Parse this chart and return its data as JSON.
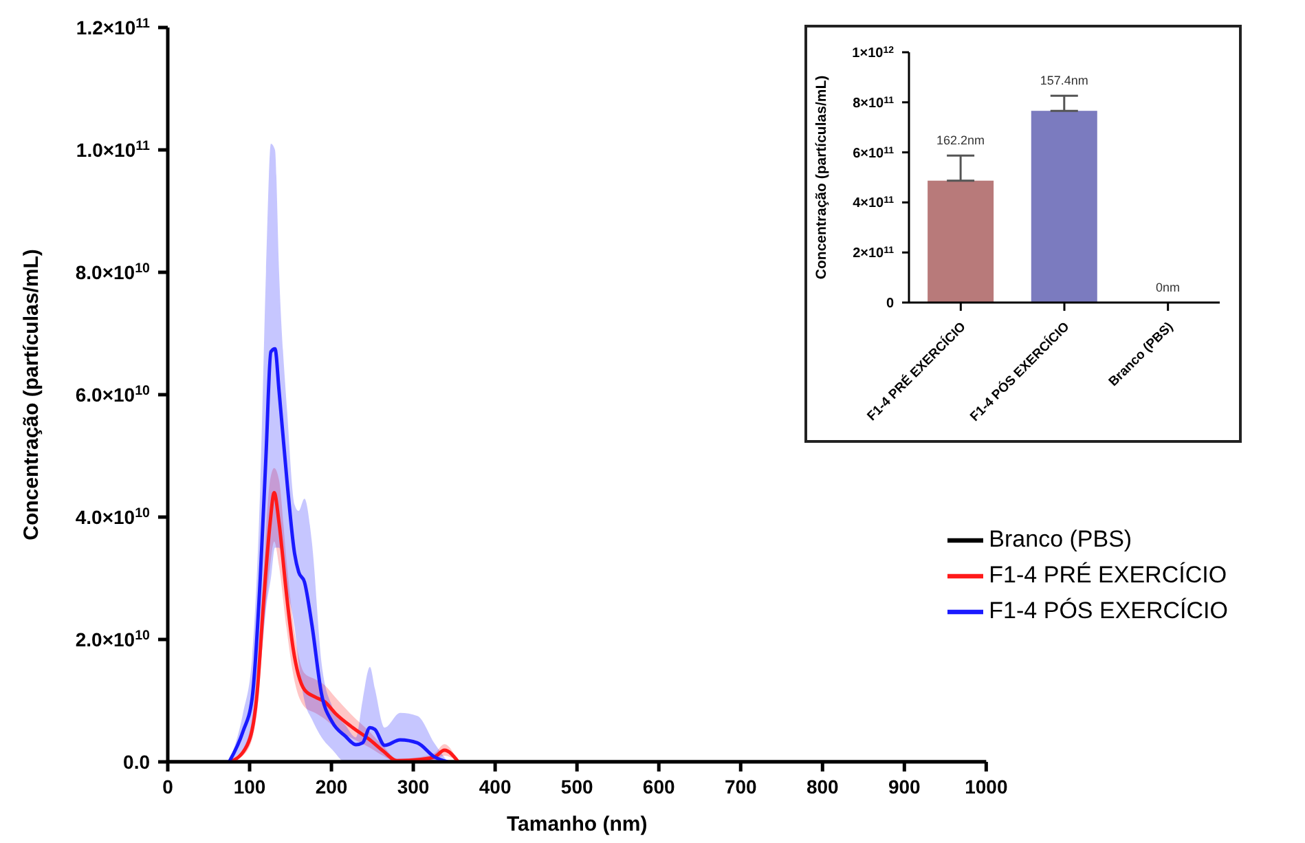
{
  "chart_data": [
    {
      "type": "line",
      "xlabel": "Tamanho (nm)",
      "ylabel": "Concentração (partículas/mL)",
      "xlim": [
        0,
        1000
      ],
      "xticks": [
        0,
        100,
        200,
        300,
        400,
        500,
        600,
        700,
        800,
        900,
        1000
      ],
      "ylim": [
        0,
        120000000000.0
      ],
      "yticks": [
        {
          "value": 0,
          "label": "0.0"
        },
        {
          "value": 20000000000.0,
          "label": "2.0×10$^{10}$"
        },
        {
          "value": 40000000000.0,
          "label": "4.0×10$^{10}$"
        },
        {
          "value": 60000000000.0,
          "label": "6.0×10$^{10}$"
        },
        {
          "value": 80000000000.0,
          "label": "8.0×10$^{10}$"
        },
        {
          "value": 100000000000.0,
          "label": "1.0×10$^{11}$"
        },
        {
          "value": 120000000000.0,
          "label": "1.2×10$^{11}$"
        }
      ],
      "legend": "right",
      "series": [
        {
          "name": "Branco (PBS)",
          "color": "#000000",
          "x": [
            0,
            1000
          ],
          "values": [
            0,
            0
          ]
        },
        {
          "name": "F1-4 PRÉ EXERCÍCIO",
          "color": "#ff1a1a",
          "x": [
            77,
            97,
            109,
            117,
            125,
            130,
            136,
            145,
            153,
            167,
            180,
            192,
            205,
            226,
            246,
            263,
            280,
            309,
            326,
            338,
            355
          ],
          "values": [
            0,
            2700000000.0,
            11000000000.0,
            26000000000.0,
            39000000000.0,
            44000000000.0,
            39000000000.0,
            27500000000.0,
            18700000000.0,
            11800000000.0,
            10600000000.0,
            9800000000.0,
            7900000000.0,
            5600000000.0,
            3700000000.0,
            1800000000.0,
            200000000.0,
            400000000.0,
            800000000.0,
            1900000000.0,
            0
          ],
          "lower": [
            0,
            1800000000.0,
            8000000000.0,
            21000000000.0,
            32000000000.0,
            36000000000.0,
            32000000000.0,
            22000000000.0,
            14500000000.0,
            9000000000.0,
            8000000000.0,
            7000000000.0,
            5500000000.0,
            3800000000.0,
            2400000000.0,
            1000000000.0,
            0,
            0,
            300000000.0,
            1000000000.0,
            0
          ],
          "upper": [
            0,
            3600000000.0,
            14000000000.0,
            31000000000.0,
            46000000000.0,
            48000000000.0,
            46000000000.0,
            33000000000.0,
            23000000000.0,
            14500000000.0,
            13500000000.0,
            12500000000.0,
            10500000000.0,
            7500000000.0,
            5000000000.0,
            2600000000.0,
            500000000.0,
            800000000.0,
            1400000000.0,
            2900000000.0,
            0
          ]
        },
        {
          "name": "F1-4 PÓS EXERCÍCIO",
          "color": "#1a1aff",
          "x": [
            75,
            92,
            103,
            113,
            120,
            126,
            131,
            136,
            146,
            155,
            160,
            167,
            176,
            188,
            201,
            217,
            230,
            238,
            247,
            253,
            265,
            284,
            305,
            326,
            342
          ],
          "values": [
            0,
            5000000000.0,
            10300000000.0,
            30000000000.0,
            50000000000.0,
            67000000000.0,
            67500000000.0,
            60600000000.0,
            45400000000.0,
            34000000000.0,
            31000000000.0,
            29400000000.0,
            22500000000.0,
            11000000000.0,
            6500000000.0,
            4200000000.0,
            2800000000.0,
            3100000000.0,
            5600000000.0,
            5300000000.0,
            2700000000.0,
            3600000000.0,
            3100000000.0,
            800000000.0,
            0
          ],
          "lower": [
            0,
            2000000000.0,
            4000000000.0,
            15000000000.0,
            25000000000.0,
            30000000000.0,
            35000000000.0,
            35000000000.0,
            28000000000.0,
            22000000000.0,
            16000000000.0,
            10000000000.0,
            7000000000.0,
            4000000000.0,
            2000000000.0,
            0,
            0,
            0,
            0,
            0,
            0,
            0,
            0,
            0,
            0
          ],
          "upper": [
            0,
            8000000000.0,
            17000000000.0,
            45000000000.0,
            80000000000.0,
            101000000000.0,
            100000000000.0,
            80000000000.0,
            57000000000.0,
            42000000000.0,
            41000000000.0,
            43000000000.0,
            36000000000.0,
            16000000000.0,
            9000000000.0,
            6000000000.0,
            4000000000.0,
            10000000000.0,
            15500000000.0,
            12000000000.0,
            5600000000.0,
            8000000000.0,
            7500000000.0,
            3000000000.0,
            0
          ]
        }
      ]
    },
    {
      "type": "bar",
      "ylabel": "Concentração (partículas/mL)",
      "categories": [
        "F1-4 PRÉ EXERCÍCIO",
        "F1-4 PÓS EXERCÍCIO",
        "Branco (PBS)"
      ],
      "values": [
        487000000000.0,
        766000000000.0,
        0
      ],
      "colors": [
        "#b87a7a",
        "#7b7bbf",
        "#000000"
      ],
      "errors": [
        [
          487000000000.0,
          587000000000.0
        ],
        [
          766000000000.0,
          826000000000.0
        ],
        null
      ],
      "annotations": [
        {
          "text": "162.2nm",
          "x": "F1-4 PRÉ EXERCÍCIO",
          "y": 487000000000.0
        },
        {
          "text": "157.4nm",
          "x": "F1-4 PÓS EXERCÍCIO",
          "y": 766000000000.0
        },
        {
          "text": "0nm",
          "x": "Branco (PBS)",
          "y": 0
        }
      ],
      "ylim": [
        0,
        1000000000000.0
      ],
      "yticks": [
        0,
        {
          "value": 200000000000.0,
          "label": "2×10$^{11}$"
        },
        {
          "value": 400000000000.0,
          "label": "4×10$^{11}$"
        },
        {
          "value": 600000000000.0,
          "label": "6×10$^{11}$"
        },
        {
          "value": 800000000000.0,
          "label": "8×10$^{11}$"
        },
        {
          "value": 1000000000000.0,
          "label": "1×10$^{12}$"
        }
      ]
    }
  ]
}
